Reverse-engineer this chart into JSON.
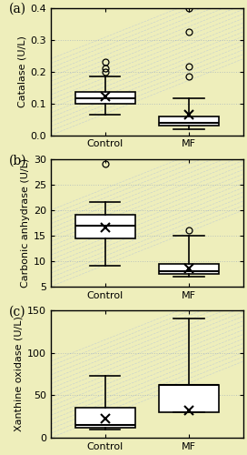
{
  "background_color": "#eeeebb",
  "panel_labels": [
    "(a)",
    "(b)",
    "(c)"
  ],
  "plots": [
    {
      "ylabel": "Catalase (U/L)",
      "ylim": [
        0,
        0.4
      ],
      "yticks": [
        0,
        0.1,
        0.2,
        0.3,
        0.4
      ],
      "groups": [
        "Control",
        "MF"
      ],
      "control": {
        "whislo": 0.065,
        "q1": 0.1,
        "med": 0.115,
        "q3": 0.135,
        "whishi": 0.185,
        "mean": 0.122,
        "fliers": [
          0.2,
          0.21,
          0.23
        ]
      },
      "mf": {
        "whislo": 0.02,
        "q1": 0.03,
        "med": 0.04,
        "q3": 0.06,
        "whishi": 0.115,
        "mean": 0.065,
        "fliers": [
          0.185,
          0.215,
          0.325,
          0.4
        ]
      }
    },
    {
      "ylabel": "Carbonic anhydrase (U/L)",
      "ylim": [
        5,
        30
      ],
      "yticks": [
        5,
        10,
        15,
        20,
        25,
        30
      ],
      "groups": [
        "Control",
        "MF"
      ],
      "control": {
        "whislo": 9.0,
        "q1": 14.5,
        "med": 17.0,
        "q3": 19.0,
        "whishi": 21.5,
        "mean": 16.5,
        "fliers": [
          29.0
        ]
      },
      "mf": {
        "whislo": 7.0,
        "q1": 7.5,
        "med": 8.0,
        "q3": 9.5,
        "whishi": 15.0,
        "mean": 8.5,
        "fliers": [
          16.0
        ]
      }
    },
    {
      "ylabel": "Xanthine oxidase (U/L)",
      "ylim": [
        0,
        150
      ],
      "yticks": [
        0,
        50,
        100,
        150
      ],
      "groups": [
        "Control",
        "MF"
      ],
      "control": {
        "whislo": 10.0,
        "q1": 12.0,
        "med": 15.0,
        "q3": 35.0,
        "whishi": 73.0,
        "mean": 22.0,
        "fliers": []
      },
      "mf": {
        "whislo": 30.0,
        "q1": 30.0,
        "med": 62.0,
        "q3": 62.0,
        "whishi": 140.0,
        "mean": 32.0,
        "fliers": []
      }
    }
  ]
}
